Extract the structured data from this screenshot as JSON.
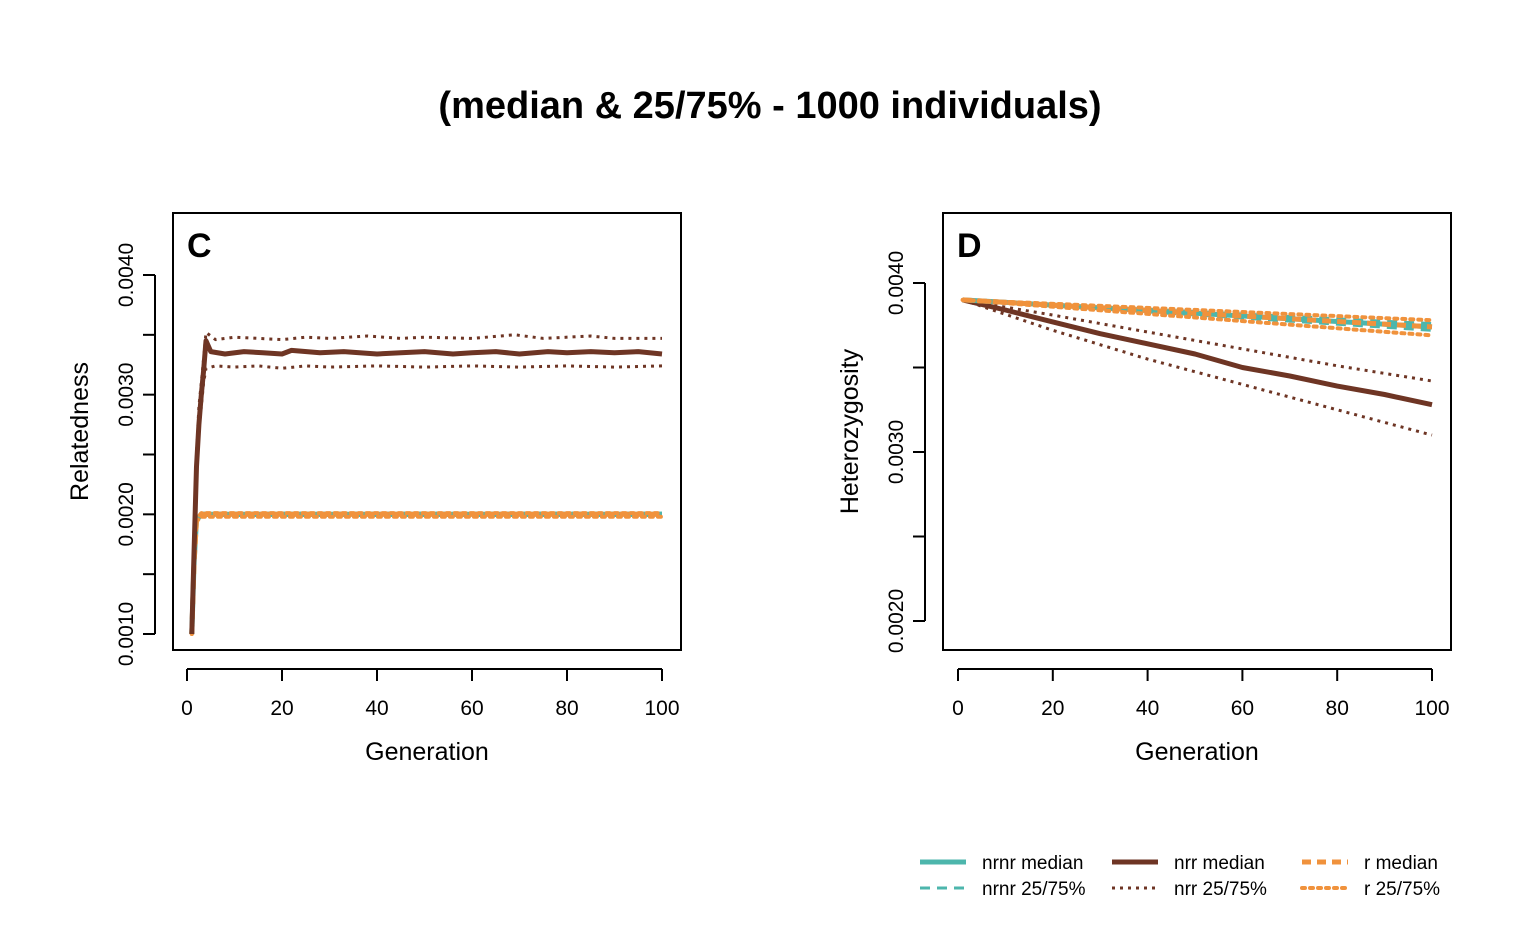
{
  "title": "(median & 25/75% - 1000 individuals)",
  "colors": {
    "nrnr": "#4DB6AC",
    "nrr": "#6E3524",
    "r": "#F0923C"
  },
  "legend": {
    "position": "bottom-right",
    "entries": [
      {
        "label": "nrnr median",
        "series": "nrnr",
        "kind": "median"
      },
      {
        "label": "nrr median",
        "series": "nrr",
        "kind": "median"
      },
      {
        "label": "r median",
        "series": "r",
        "kind": "median"
      },
      {
        "label": "nrnr 25/75%",
        "series": "nrnr",
        "kind": "quantile"
      },
      {
        "label": "nrr 25/75%",
        "series": "nrr",
        "kind": "quantile"
      },
      {
        "label": "r 25/75%",
        "series": "r",
        "kind": "quantile"
      }
    ]
  },
  "chart_data": [
    {
      "type": "line",
      "panel": "C",
      "xlabel": "Generation",
      "ylabel": "Relatedness",
      "xlim": [
        1,
        100
      ],
      "ylim": [
        0.0009,
        0.0044
      ],
      "xticks": [
        0,
        20,
        40,
        60,
        80,
        100
      ],
      "yticks": [
        0.001,
        0.0015,
        0.002,
        0.0025,
        0.003,
        0.0035,
        0.004
      ],
      "ytick_labels": [
        "0.0010",
        "",
        "0.0020",
        "",
        "0.0030",
        "",
        "0.0040"
      ],
      "grid": false,
      "series": [
        {
          "name": "nrnr median",
          "group": "nrnr",
          "kind": "median",
          "x": [
            1,
            1.5,
            2,
            3,
            100
          ],
          "y": [
            0.001,
            0.0016,
            0.00195,
            0.002,
            0.002
          ]
        },
        {
          "name": "nrnr 25/75%",
          "group": "nrnr",
          "kind": "lower",
          "x": [
            1,
            1.5,
            2,
            3,
            100
          ],
          "y": [
            0.001,
            0.0016,
            0.00194,
            0.00199,
            0.00199
          ]
        },
        {
          "name": "nrnr 25/75%",
          "group": "nrnr",
          "kind": "upper",
          "x": [
            1,
            1.5,
            2,
            3,
            100
          ],
          "y": [
            0.001,
            0.0016,
            0.00196,
            0.00201,
            0.00201
          ]
        },
        {
          "name": "r median",
          "group": "r",
          "kind": "median",
          "x": [
            1,
            1.5,
            2,
            3,
            100
          ],
          "y": [
            0.001,
            0.0016,
            0.00195,
            0.002,
            0.002
          ]
        },
        {
          "name": "r 25/75%",
          "group": "r",
          "kind": "lower",
          "x": [
            1,
            1.5,
            2,
            3,
            100
          ],
          "y": [
            0.001,
            0.0016,
            0.00194,
            0.00198,
            0.00198
          ]
        },
        {
          "name": "r 25/75%",
          "group": "r",
          "kind": "upper",
          "x": [
            1,
            1.5,
            2,
            3,
            100
          ],
          "y": [
            0.001,
            0.0016,
            0.00196,
            0.00201,
            0.00201
          ]
        },
        {
          "name": "nrr median",
          "group": "nrr",
          "kind": "median",
          "x": [
            1,
            1.5,
            2,
            2.5,
            3,
            3.5,
            4,
            5,
            8,
            12,
            16,
            20,
            22,
            28,
            33,
            40,
            45,
            50,
            56,
            60,
            65,
            70,
            76,
            80,
            85,
            90,
            95,
            100
          ],
          "y": [
            0.001,
            0.0017,
            0.0024,
            0.00275,
            0.003,
            0.0032,
            0.00345,
            0.00336,
            0.00334,
            0.00336,
            0.00335,
            0.00334,
            0.00337,
            0.00335,
            0.00336,
            0.00334,
            0.00335,
            0.00336,
            0.00334,
            0.00335,
            0.00336,
            0.00334,
            0.00336,
            0.00335,
            0.00336,
            0.00335,
            0.00336,
            0.00334
          ]
        },
        {
          "name": "nrr 25/75%",
          "group": "nrr",
          "kind": "lower",
          "x": [
            1,
            1.5,
            2,
            2.5,
            3,
            3.5,
            4,
            6,
            10,
            15,
            20,
            25,
            30,
            40,
            50,
            60,
            70,
            80,
            90,
            100
          ],
          "y": [
            0.001,
            0.0016,
            0.0023,
            0.0027,
            0.0029,
            0.0031,
            0.00322,
            0.00324,
            0.00323,
            0.00324,
            0.00322,
            0.00324,
            0.00323,
            0.00324,
            0.00323,
            0.00324,
            0.00323,
            0.00324,
            0.00323,
            0.00324
          ]
        },
        {
          "name": "nrr 25/75%",
          "group": "nrr",
          "kind": "upper",
          "x": [
            1,
            1.5,
            2,
            2.5,
            3,
            3.5,
            4,
            6,
            10,
            15,
            20,
            25,
            30,
            38,
            45,
            50,
            60,
            69,
            75,
            85,
            90,
            100
          ],
          "y": [
            0.001,
            0.0018,
            0.0025,
            0.0029,
            0.0031,
            0.0033,
            0.00352,
            0.00346,
            0.00348,
            0.00347,
            0.00346,
            0.00348,
            0.00347,
            0.00349,
            0.00347,
            0.00348,
            0.00347,
            0.0035,
            0.00347,
            0.00349,
            0.00347,
            0.00347
          ]
        }
      ]
    },
    {
      "type": "line",
      "panel": "D",
      "xlabel": "Generation",
      "ylabel": "Heterozygosity",
      "xlim": [
        0,
        100
      ],
      "ylim": [
        0.0018,
        0.0044
      ],
      "xticks": [
        0,
        20,
        40,
        60,
        80,
        100
      ],
      "yticks": [
        0.002,
        0.0025,
        0.003,
        0.0035,
        0.004
      ],
      "ytick_labels": [
        "0.0020",
        "",
        "0.0030",
        "",
        "0.0040"
      ],
      "grid": false,
      "series": [
        {
          "name": "nrr median",
          "group": "nrr",
          "kind": "median",
          "x": [
            1,
            10,
            20,
            30,
            40,
            50,
            60,
            70,
            80,
            90,
            100
          ],
          "y": [
            0.0039,
            0.00384,
            0.00377,
            0.0037,
            0.00364,
            0.00358,
            0.0035,
            0.00345,
            0.00339,
            0.00334,
            0.00328
          ]
        },
        {
          "name": "nrr 25/75%",
          "group": "nrr",
          "kind": "lower",
          "x": [
            1,
            20,
            40,
            60,
            80,
            100
          ],
          "y": [
            0.0039,
            0.00372,
            0.00355,
            0.0034,
            0.00325,
            0.0031
          ]
        },
        {
          "name": "nrr 25/75%",
          "group": "nrr",
          "kind": "upper",
          "x": [
            1,
            20,
            40,
            60,
            80,
            100
          ],
          "y": [
            0.0039,
            0.00381,
            0.00371,
            0.00361,
            0.00351,
            0.00342
          ]
        },
        {
          "name": "nrnr median",
          "group": "nrnr",
          "kind": "median",
          "x": [
            1,
            100
          ],
          "y": [
            0.0039,
            0.00374
          ]
        },
        {
          "name": "nrnr 25/75%",
          "group": "nrnr",
          "kind": "lower",
          "x": [
            1,
            100
          ],
          "y": [
            0.0039,
            0.00372
          ]
        },
        {
          "name": "nrnr 25/75%",
          "group": "nrnr",
          "kind": "upper",
          "x": [
            1,
            100
          ],
          "y": [
            0.0039,
            0.00376
          ]
        },
        {
          "name": "r median",
          "group": "r",
          "kind": "median",
          "x": [
            1,
            100
          ],
          "y": [
            0.0039,
            0.00374
          ]
        },
        {
          "name": "r 25/75%",
          "group": "r",
          "kind": "lower",
          "x": [
            1,
            100
          ],
          "y": [
            0.0039,
            0.00369
          ]
        },
        {
          "name": "r 25/75%",
          "group": "r",
          "kind": "upper",
          "x": [
            1,
            100
          ],
          "y": [
            0.0039,
            0.00378
          ]
        }
      ]
    }
  ]
}
